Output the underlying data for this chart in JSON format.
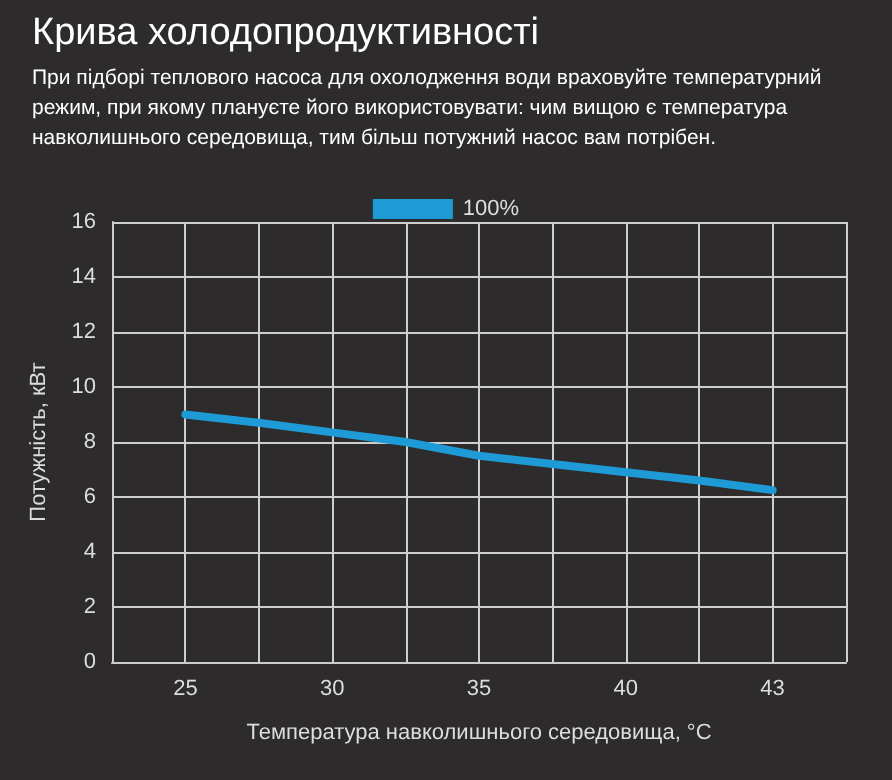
{
  "chart_data": {
    "type": "line",
    "title": "Крива холодопродуктивності",
    "subtitle": "При підборі теплового насоса для охолодження води враховуйте температурний режим, при якому плануєте його використовувати: чим вищою є температура навколишнього середовища, тим більш потужний насос вам потрібен.",
    "xlabel": "Температура навколишнього середовища, °C",
    "ylabel": "Потужність, кВт",
    "categories": [
      null,
      "25",
      null,
      "30",
      null,
      "35",
      null,
      "40",
      null,
      "43",
      null
    ],
    "series": [
      {
        "name": "100%",
        "color": "#1e9bd7",
        "values": [
          null,
          9.0,
          8.7,
          8.35,
          8.0,
          7.5,
          7.2,
          6.9,
          6.6,
          6.25,
          null
        ]
      }
    ],
    "ylim": [
      0,
      16
    ],
    "yticks": [
      0,
      2,
      4,
      6,
      8,
      10,
      12,
      14,
      16
    ],
    "grid": true,
    "legend": "top",
    "marker": "none",
    "line_style": "solid"
  }
}
